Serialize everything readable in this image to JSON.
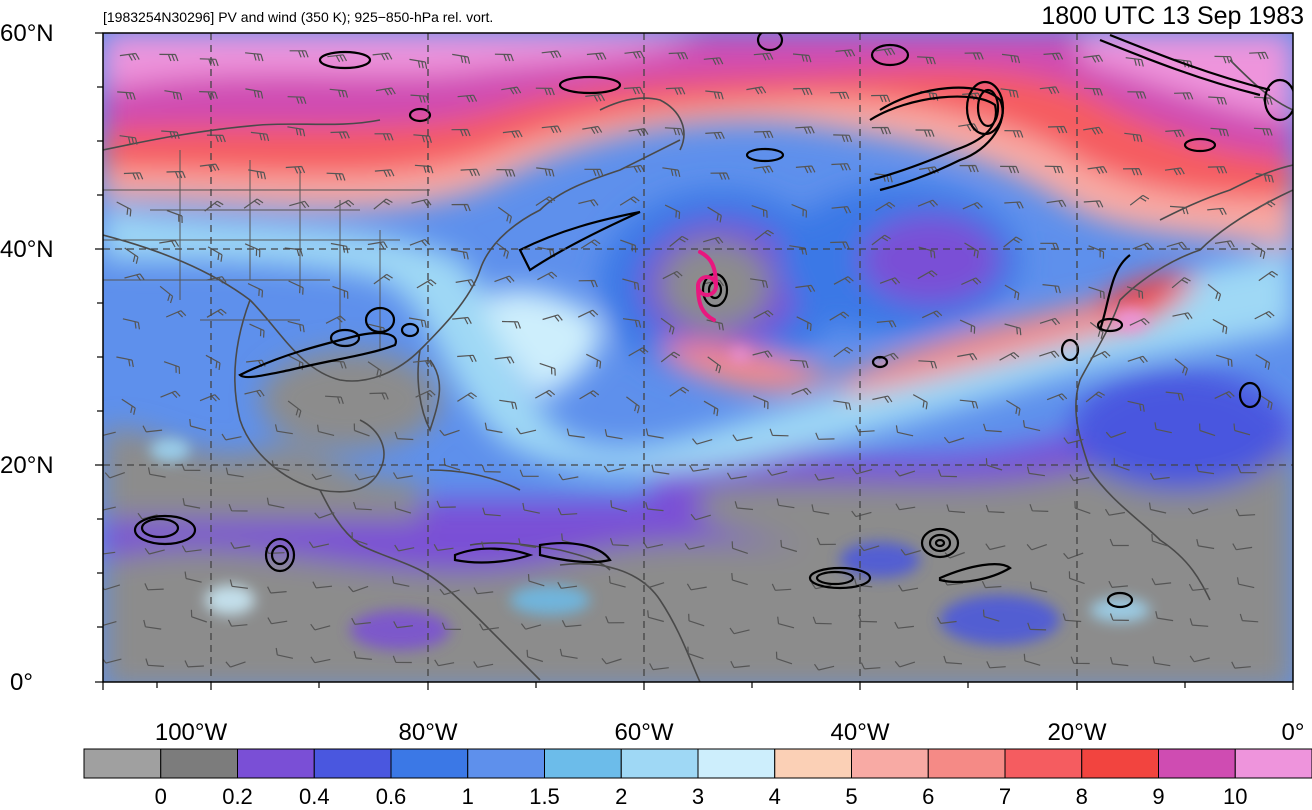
{
  "figure": {
    "title_left": "[1983254N30296] PV and wind (350 K); 925−850-hPa rel. vort.",
    "title_right": "1800 UTC 13 Sep 1983"
  },
  "axes": {
    "lat_ticks": [
      {
        "value": 60,
        "label": "60°N"
      },
      {
        "value": 40,
        "label": "40°N"
      },
      {
        "value": 20,
        "label": "20°N"
      },
      {
        "value": 0,
        "label": "0°"
      }
    ],
    "lon_ticks": [
      {
        "value": -100,
        "label": "100°W"
      },
      {
        "value": -80,
        "label": "80°W"
      },
      {
        "value": -60,
        "label": "60°W"
      },
      {
        "value": -40,
        "label": "40°W"
      },
      {
        "value": -20,
        "label": "20°W"
      },
      {
        "value": 0,
        "label": "0°"
      }
    ],
    "lon_range": [
      -110,
      0
    ],
    "lat_range": [
      0,
      60
    ],
    "gridlines": "dashed every 20°"
  },
  "colorbar": {
    "colors": [
      "#a0a0a0",
      "#7c7c7c",
      "#7a4fd6",
      "#4a57df",
      "#3b78e6",
      "#5e90ec",
      "#6cbcea",
      "#9fd8f5",
      "#cdeefc",
      "#fbd0b6",
      "#f8aaa4",
      "#f58a86",
      "#f55c60",
      "#f2443f",
      "#cf4cb2",
      "#ee94dc"
    ],
    "labels": [
      {
        "index": 1,
        "text": "0"
      },
      {
        "index": 2,
        "text": "0.2"
      },
      {
        "index": 3,
        "text": "0.4"
      },
      {
        "index": 4,
        "text": "0.6"
      },
      {
        "index": 5,
        "text": "1"
      },
      {
        "index": 6,
        "text": "1.5"
      },
      {
        "index": 7,
        "text": "2"
      },
      {
        "index": 8,
        "text": "3"
      },
      {
        "index": 9,
        "text": "4"
      },
      {
        "index": 10,
        "text": "5"
      },
      {
        "index": 11,
        "text": "6"
      },
      {
        "index": 12,
        "text": "7"
      },
      {
        "index": 13,
        "text": "8"
      },
      {
        "index": 14,
        "text": "9"
      },
      {
        "index": 15,
        "text": "10"
      }
    ]
  },
  "storm_marker": {
    "symbol": "tropical-cyclone-icon",
    "color": "#e8177f",
    "lon": -54.5,
    "lat": 36.5
  }
}
